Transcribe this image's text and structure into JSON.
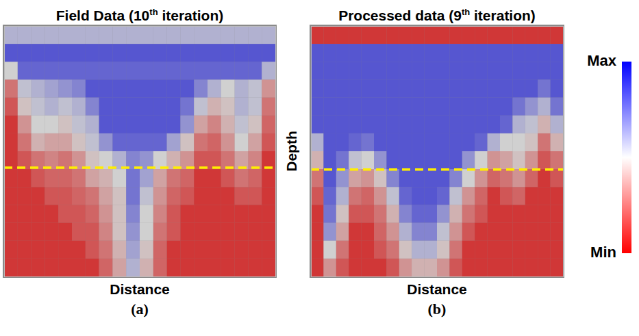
{
  "chart_data": [
    {
      "type": "heatmap",
      "title": "Field Data (10th iteration)",
      "xlabel": "Distance",
      "panel": "(a)",
      "tick_labels": false,
      "xlim": [
        0,
        20
      ],
      "ylim": [
        0,
        14
      ],
      "x": [
        0,
        1,
        2,
        3,
        4,
        5,
        6,
        7,
        8,
        9,
        10,
        11,
        12,
        13,
        14,
        15,
        16,
        17,
        18,
        19
      ],
      "y": [
        0,
        1,
        2,
        3,
        4,
        5,
        6,
        7,
        8,
        9,
        10,
        11,
        12,
        13
      ],
      "values": [
        [
          0.6,
          0.6,
          0.6,
          0.6,
          0.6,
          0.6,
          0.6,
          0.6,
          0.6,
          0.6,
          0.6,
          0.6,
          0.6,
          0.6,
          0.6,
          0.6,
          0.6,
          0.6,
          0.6,
          0.6
        ],
        [
          0.9,
          0.9,
          0.9,
          0.9,
          0.9,
          0.9,
          0.9,
          0.9,
          0.9,
          0.9,
          0.9,
          0.9,
          0.9,
          0.9,
          0.9,
          0.9,
          0.9,
          0.9,
          0.9,
          0.9
        ],
        [
          0.5,
          0.85,
          0.85,
          0.85,
          0.85,
          0.85,
          0.85,
          0.85,
          0.85,
          0.85,
          0.85,
          0.85,
          0.85,
          0.85,
          0.85,
          0.85,
          0.85,
          0.85,
          0.85,
          0.6
        ],
        [
          0.2,
          0.55,
          0.6,
          0.65,
          0.7,
          0.75,
          0.9,
          0.9,
          0.9,
          0.9,
          0.9,
          0.9,
          0.9,
          0.9,
          0.75,
          0.6,
          0.5,
          0.6,
          0.55,
          0.3
        ],
        [
          0.1,
          0.45,
          0.55,
          0.6,
          0.55,
          0.6,
          0.75,
          0.9,
          0.9,
          0.9,
          0.9,
          0.9,
          0.9,
          0.8,
          0.55,
          0.4,
          0.45,
          0.6,
          0.55,
          0.2
        ],
        [
          0,
          0.3,
          0.5,
          0.5,
          0.45,
          0.55,
          0.6,
          0.9,
          0.9,
          0.9,
          0.9,
          0.9,
          0.9,
          0.7,
          0.35,
          0.25,
          0.4,
          0.55,
          0.45,
          0.15
        ],
        [
          0,
          0.2,
          0.4,
          0.35,
          0.35,
          0.45,
          0.55,
          0.7,
          0.85,
          0.85,
          0.85,
          0.85,
          0.65,
          0.45,
          0.2,
          0.15,
          0.3,
          0.5,
          0.35,
          0.1
        ],
        [
          0,
          0.1,
          0.2,
          0.25,
          0.2,
          0.3,
          0.45,
          0.5,
          0.6,
          0.75,
          0.7,
          0.5,
          0.4,
          0.3,
          0.1,
          0.1,
          0.2,
          0.35,
          0.25,
          0
        ],
        [
          0,
          0,
          0.1,
          0.15,
          0.15,
          0.2,
          0.35,
          0.4,
          0.5,
          0.8,
          0.65,
          0.35,
          0.2,
          0.15,
          0,
          0,
          0.1,
          0.2,
          0.15,
          0
        ],
        [
          0,
          0,
          0,
          0.1,
          0.1,
          0.15,
          0.2,
          0.35,
          0.45,
          0.8,
          0.55,
          0.3,
          0.15,
          0.1,
          0,
          0,
          0,
          0.1,
          0.1,
          0
        ],
        [
          0,
          0,
          0,
          0,
          0.1,
          0.1,
          0.15,
          0.3,
          0.45,
          0.75,
          0.5,
          0.25,
          0.1,
          0,
          0,
          0,
          0,
          0,
          0,
          0
        ],
        [
          0,
          0,
          0,
          0,
          0,
          0.1,
          0.1,
          0.25,
          0.45,
          0.7,
          0.5,
          0.2,
          0.1,
          0,
          0,
          0,
          0,
          0,
          0,
          0
        ],
        [
          0,
          0,
          0,
          0,
          0,
          0,
          0.1,
          0.2,
          0.4,
          0.65,
          0.45,
          0.15,
          0,
          0,
          0,
          0,
          0,
          0,
          0,
          0
        ],
        [
          0,
          0,
          0,
          0,
          0,
          0,
          0,
          0.15,
          0.35,
          0.6,
          0.4,
          0.15,
          0,
          0,
          0,
          0,
          0,
          0,
          0,
          0
        ]
      ],
      "annotations": [
        {
          "type": "hline",
          "y": 7.9,
          "color": "#ffee00",
          "line_style": "dashed"
        }
      ]
    },
    {
      "type": "heatmap",
      "title": "Processed data (9th iteration)",
      "xlabel": "Distance",
      "ylabel": "Depth",
      "panel": "(b)",
      "tick_labels": false,
      "xlim": [
        0,
        20
      ],
      "ylim": [
        0,
        14
      ],
      "x": [
        0,
        1,
        2,
        3,
        4,
        5,
        6,
        7,
        8,
        9,
        10,
        11,
        12,
        13,
        14,
        15,
        16,
        17,
        18,
        19
      ],
      "y": [
        0,
        1,
        2,
        3,
        4,
        5,
        6,
        7,
        8,
        9,
        10,
        11,
        12,
        13
      ],
      "values": [
        [
          0,
          0,
          0,
          0,
          0,
          0,
          0,
          0,
          0,
          0,
          0,
          0,
          0,
          0,
          0,
          0,
          0,
          0,
          0,
          0
        ],
        [
          0.9,
          0.9,
          0.9,
          0.9,
          0.9,
          0.9,
          0.9,
          0.9,
          0.9,
          0.9,
          0.9,
          0.9,
          0.9,
          0.9,
          0.9,
          0.9,
          0.9,
          0.9,
          0.9,
          0.9
        ],
        [
          0.9,
          0.9,
          0.9,
          0.9,
          0.9,
          0.9,
          0.9,
          0.9,
          0.9,
          0.9,
          0.9,
          0.9,
          0.9,
          0.9,
          0.9,
          0.9,
          0.9,
          0.9,
          0.9,
          0.9
        ],
        [
          0.9,
          0.9,
          0.9,
          0.9,
          0.9,
          0.9,
          0.9,
          0.9,
          0.9,
          0.9,
          0.9,
          0.9,
          0.9,
          0.9,
          0.9,
          0.9,
          0.9,
          0.9,
          0.8,
          0.9
        ],
        [
          0.9,
          0.9,
          0.9,
          0.9,
          0.9,
          0.9,
          0.9,
          0.9,
          0.9,
          0.9,
          0.9,
          0.9,
          0.9,
          0.9,
          0.9,
          0.9,
          0.8,
          0.7,
          0.6,
          0.8
        ],
        [
          0.9,
          0.9,
          0.9,
          0.9,
          0.9,
          0.9,
          0.9,
          0.9,
          0.9,
          0.9,
          0.9,
          0.9,
          0.9,
          0.9,
          0.9,
          0.85,
          0.6,
          0.55,
          0.4,
          0.6
        ],
        [
          0.6,
          0.9,
          0.9,
          0.85,
          0.8,
          0.9,
          0.9,
          0.9,
          0.9,
          0.9,
          0.9,
          0.9,
          0.9,
          0.85,
          0.6,
          0.5,
          0.5,
          0.45,
          0.2,
          0.4
        ],
        [
          0.4,
          0.9,
          0.8,
          0.55,
          0.5,
          0.7,
          0.9,
          0.9,
          0.9,
          0.9,
          0.9,
          0.9,
          0.7,
          0.5,
          0.3,
          0.35,
          0.45,
          0.3,
          0.1,
          0.2
        ],
        [
          0.2,
          0.9,
          0.7,
          0.35,
          0.3,
          0.45,
          0.75,
          0.9,
          0.9,
          0.9,
          0.9,
          0.75,
          0.5,
          0.3,
          0.15,
          0.2,
          0.3,
          0.15,
          0,
          0.1
        ],
        [
          0.1,
          0.85,
          0.6,
          0.2,
          0.15,
          0.3,
          0.55,
          0.85,
          0.9,
          0.9,
          0.85,
          0.55,
          0.3,
          0.15,
          0,
          0.1,
          0.15,
          0,
          0,
          0
        ],
        [
          0,
          0.8,
          0.45,
          0.1,
          0.1,
          0.2,
          0.4,
          0.75,
          0.85,
          0.85,
          0.7,
          0.4,
          0.2,
          0.1,
          0,
          0,
          0,
          0,
          0,
          0
        ],
        [
          0,
          0.7,
          0.35,
          0,
          0,
          0.15,
          0.3,
          0.6,
          0.75,
          0.75,
          0.55,
          0.3,
          0.1,
          0,
          0,
          0,
          0,
          0,
          0,
          0
        ],
        [
          0,
          0.5,
          0.2,
          0,
          0,
          0.1,
          0.2,
          0.45,
          0.6,
          0.6,
          0.45,
          0.2,
          0,
          0,
          0,
          0,
          0,
          0,
          0,
          0
        ],
        [
          0,
          0.3,
          0.1,
          0,
          0,
          0,
          0.1,
          0.3,
          0.4,
          0.4,
          0.3,
          0.1,
          0,
          0,
          0,
          0,
          0,
          0,
          0,
          0
        ]
      ],
      "annotations": [
        {
          "type": "hline",
          "y": 8.0,
          "color": "#ffee00",
          "line_style": "dashed"
        }
      ],
      "colorbar": {
        "range": [
          0,
          1
        ],
        "colors": [
          "#ff0000",
          "#ffffff",
          "#0000ff"
        ],
        "ticks": [
          {
            "value": 1,
            "label": "Max"
          },
          {
            "value": 0,
            "label": "Min"
          }
        ]
      }
    }
  ]
}
